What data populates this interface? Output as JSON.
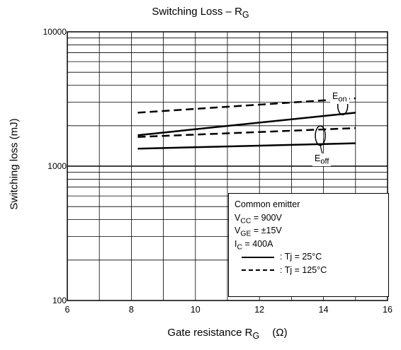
{
  "chart_data": {
    "type": "line",
    "title_text": "Switching Loss – R",
    "title_sub": "G",
    "xlabel_text": "Gate resistance   R",
    "xlabel_sub": "G",
    "xlabel_unit": "(Ω)",
    "ylabel": "Switching loss   (mJ)",
    "xlim": [
      6,
      16
    ],
    "ylim": [
      100,
      10000
    ],
    "yscale": "log",
    "grid": true,
    "x_ticks": [
      "6",
      "8",
      "10",
      "12",
      "14",
      "16"
    ],
    "y_ticks": [
      "100",
      "1000",
      "10000"
    ],
    "series": [
      {
        "name": "Eon, Tj = 25°C",
        "style": "solid",
        "x": [
          8.2,
          15
        ],
        "y": [
          1700,
          2500
        ]
      },
      {
        "name": "Eon, Tj = 125°C",
        "style": "dashed",
        "x": [
          8.2,
          15
        ],
        "y": [
          2500,
          3200
        ]
      },
      {
        "name": "Eoff, Tj = 25°C",
        "style": "solid",
        "x": [
          8.2,
          15
        ],
        "y": [
          1350,
          1480
        ]
      },
      {
        "name": "Eoff, Tj = 125°C",
        "style": "dashed",
        "x": [
          8.2,
          15
        ],
        "y": [
          1650,
          1920
        ]
      }
    ],
    "callouts": {
      "eon_main": "E",
      "eon_sub": "on",
      "eoff_main": "E",
      "eoff_sub": "off"
    },
    "legend": {
      "title": "Common emitter",
      "vcc_main": "V",
      "vcc_sub": "CC",
      "vcc_val": " = 900V",
      "vge_main": "V",
      "vge_sub": "GE",
      "vge_val": " =  ±15V",
      "ic_main": "I",
      "ic_sub": "C",
      "ic_val": " = 400A",
      "solid_label": ": Tj = 25°C",
      "dashed_label": ": Tj = 125°C"
    }
  }
}
